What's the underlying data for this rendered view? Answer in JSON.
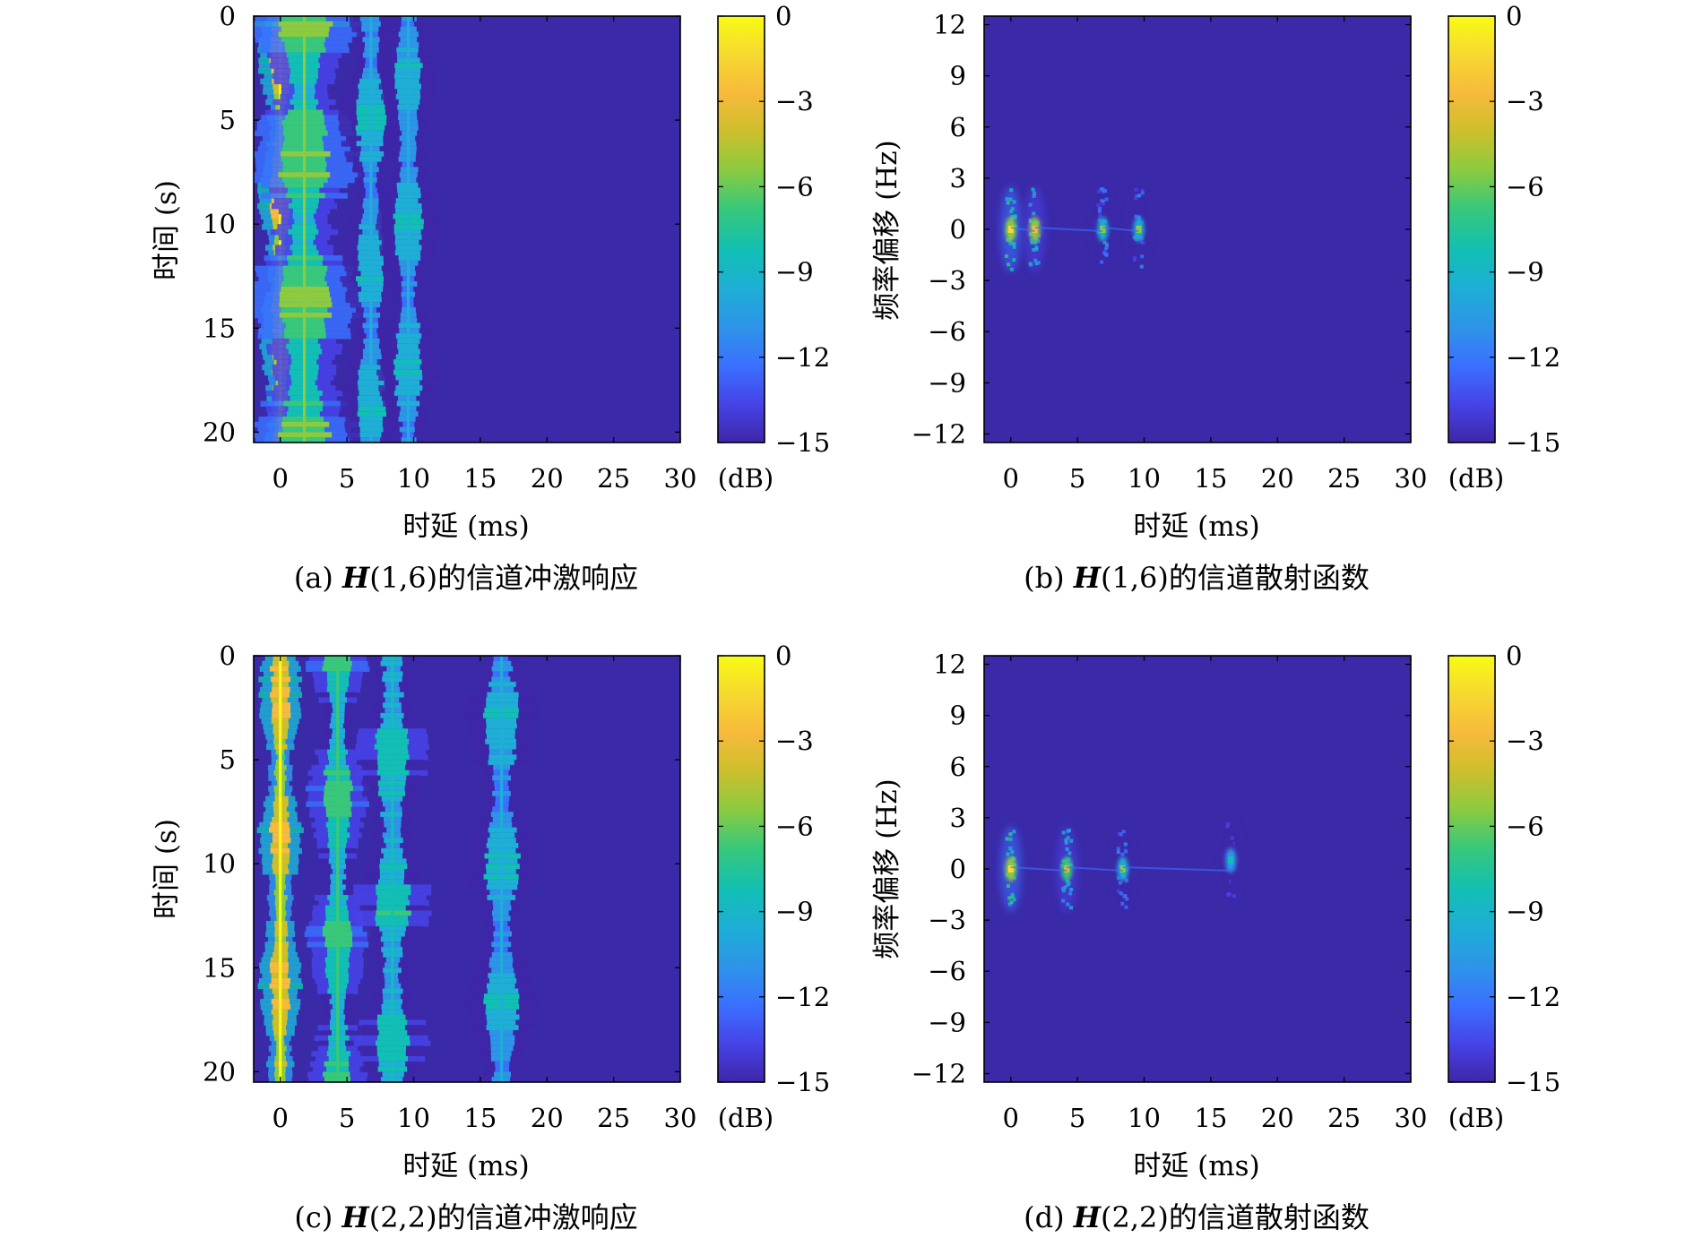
{
  "panels": [
    {
      "caption_prefix": "(a) ",
      "caption_matrix": "H",
      "caption_suffix": "(1,6)的信道冲激响应",
      "chart_data": {
        "type": "heatmap",
        "xlabel": "时延 (ms)",
        "ylabel": "时间 (s)",
        "xlim": [
          -2,
          30
        ],
        "ylim": [
          0,
          20.5
        ],
        "y_reversed": true,
        "xticks": [
          0,
          5,
          10,
          15,
          20,
          25,
          30
        ],
        "yticks": [
          0,
          5,
          10,
          15,
          20
        ],
        "colorbar": {
          "label": "(dB)",
          "range": [
            -15,
            0
          ],
          "ticks": [
            0,
            -3,
            -6,
            -9,
            -12,
            -15
          ]
        },
        "paths": [
          {
            "delay_ms": 0,
            "peak_db": 0,
            "spread_ms": 0.35
          },
          {
            "delay_ms": 1.8,
            "peak_db": -3,
            "spread_ms": 0.9
          },
          {
            "delay_ms": 6.8,
            "peak_db": -6,
            "spread_ms": 0.5
          },
          {
            "delay_ms": 9.6,
            "peak_db": -6,
            "spread_ms": 0.5
          }
        ]
      }
    },
    {
      "caption_prefix": "(b) ",
      "caption_matrix": "H",
      "caption_suffix": "(1,6)的信道散射函数",
      "chart_data": {
        "type": "heatmap",
        "xlabel": "时延 (ms)",
        "ylabel": "频率偏移 (Hz)",
        "xlim": [
          -2,
          30
        ],
        "ylim": [
          -12.5,
          12.5
        ],
        "xticks": [
          0,
          5,
          10,
          15,
          20,
          25,
          30
        ],
        "yticks": [
          12,
          9,
          6,
          3,
          0,
          -3,
          -6,
          -9,
          -12
        ],
        "colorbar": {
          "label": "(dB)",
          "range": [
            -15,
            0
          ],
          "ticks": [
            0,
            -3,
            -6,
            -9,
            -12,
            -15
          ]
        },
        "scatterers": [
          {
            "delay_ms": 0,
            "doppler_hz": 0,
            "peak_db": -2
          },
          {
            "delay_ms": 1.8,
            "doppler_hz": 0,
            "peak_db": -3
          },
          {
            "delay_ms": 6.9,
            "doppler_hz": 0,
            "peak_db": -6
          },
          {
            "delay_ms": 9.6,
            "doppler_hz": 0,
            "peak_db": -6
          }
        ]
      }
    },
    {
      "caption_prefix": "(c) ",
      "caption_matrix": "H",
      "caption_suffix": "(2,2)的信道冲激响应",
      "chart_data": {
        "type": "heatmap",
        "xlabel": "时延 (ms)",
        "ylabel": "时间 (s)",
        "xlim": [
          -2,
          30
        ],
        "ylim": [
          0,
          20.5
        ],
        "y_reversed": true,
        "xticks": [
          0,
          5,
          10,
          15,
          20,
          25,
          30
        ],
        "yticks": [
          0,
          5,
          10,
          15,
          20
        ],
        "colorbar": {
          "label": "(dB)",
          "range": [
            -15,
            0
          ],
          "ticks": [
            0,
            -3,
            -6,
            -9,
            -12,
            -15
          ]
        },
        "paths": [
          {
            "delay_ms": 0,
            "peak_db": 0,
            "spread_ms": 0.35
          },
          {
            "delay_ms": 4.3,
            "peak_db": -4,
            "spread_ms": 0.5
          },
          {
            "delay_ms": 8.4,
            "peak_db": -5,
            "spread_ms": 0.6
          },
          {
            "delay_ms": 16.6,
            "peak_db": -6,
            "spread_ms": 0.6
          }
        ]
      }
    },
    {
      "caption_prefix": "(d) ",
      "caption_matrix": "H",
      "caption_suffix": "(2,2)的信道散射函数",
      "chart_data": {
        "type": "heatmap",
        "xlabel": "时延 (ms)",
        "ylabel": "频率偏移 (Hz)",
        "xlim": [
          -2,
          30
        ],
        "ylim": [
          -12.5,
          12.5
        ],
        "xticks": [
          0,
          5,
          10,
          15,
          20,
          25,
          30
        ],
        "yticks": [
          12,
          9,
          6,
          3,
          0,
          -3,
          -6,
          -9,
          -12
        ],
        "colorbar": {
          "label": "(dB)",
          "range": [
            -15,
            0
          ],
          "ticks": [
            0,
            -3,
            -6,
            -9,
            -12,
            -15
          ]
        },
        "scatterers": [
          {
            "delay_ms": 0,
            "doppler_hz": 0,
            "peak_db": -2
          },
          {
            "delay_ms": 4.2,
            "doppler_hz": 0,
            "peak_db": -4
          },
          {
            "delay_ms": 8.4,
            "doppler_hz": 0,
            "peak_db": -6
          },
          {
            "delay_ms": 16.5,
            "doppler_hz": 0.5,
            "peak_db": -8
          }
        ]
      }
    }
  ],
  "colors": {
    "background": "#3a2aa8",
    "colormap": [
      "#3e26a8",
      "#4643e7",
      "#3a70ff",
      "#2d94e8",
      "#1eaed6",
      "#12bfb4",
      "#38c87a",
      "#8ccb3f",
      "#cdbf2c",
      "#f7ba3c",
      "#f6d92f",
      "#f9fb15"
    ]
  }
}
